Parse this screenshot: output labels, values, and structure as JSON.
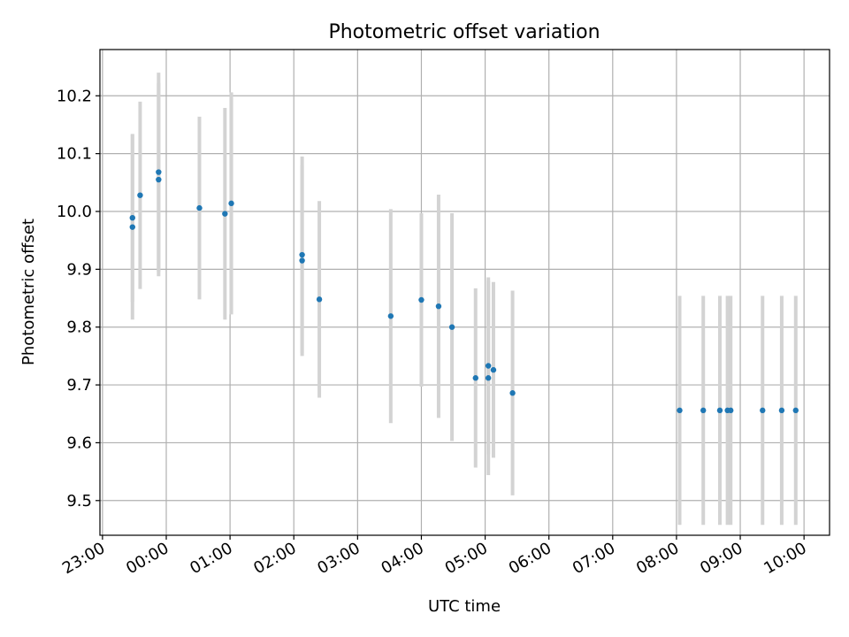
{
  "chart_data": {
    "type": "scatter",
    "title": "Photometric offset variation",
    "xlabel": "UTC time",
    "ylabel": "Photometric offset",
    "x_unit": "hours after 00:00 UTC (negative = previous day)",
    "xlim": [
      -1.04,
      10.4
    ],
    "ylim": [
      9.44,
      10.28
    ],
    "grid": true,
    "legend": "none",
    "x_tick_labels": [
      "23:00",
      "00:00",
      "01:00",
      "02:00",
      "03:00",
      "04:00",
      "05:00",
      "06:00",
      "07:00",
      "08:00",
      "09:00",
      "10:00"
    ],
    "x_tick_values": [
      -1,
      0,
      1,
      2,
      3,
      4,
      5,
      6,
      7,
      8,
      9,
      10
    ],
    "y_ticks": [
      9.5,
      9.6,
      9.7,
      9.8,
      9.9,
      10.0,
      10.1,
      10.2
    ],
    "y_tick_labels": [
      "9.5",
      "9.6",
      "9.7",
      "9.8",
      "9.9",
      "10.0",
      "10.1",
      "10.2"
    ],
    "colors": {
      "points": "#1f77b4",
      "error_bars": "#d3d3d3",
      "grid": "#b0b0b0"
    },
    "series": [
      {
        "points": [
          {
            "x": -0.53,
            "y": 9.989,
            "err": 0.145
          },
          {
            "x": -0.53,
            "y": 9.973,
            "err": 0.16
          },
          {
            "x": -0.41,
            "y": 10.028,
            "err": 0.162
          },
          {
            "x": -0.12,
            "y": 10.068,
            "err": 0.172
          },
          {
            "x": -0.12,
            "y": 10.055,
            "err": 0.167
          },
          {
            "x": 0.52,
            "y": 10.006,
            "err": 0.158
          },
          {
            "x": 0.92,
            "y": 9.996,
            "err": 0.183
          },
          {
            "x": 1.02,
            "y": 10.014,
            "err": 0.192
          },
          {
            "x": 2.13,
            "y": 9.925,
            "err": 0.17
          },
          {
            "x": 2.13,
            "y": 9.915,
            "err": 0.165
          },
          {
            "x": 2.4,
            "y": 9.848,
            "err": 0.17
          },
          {
            "x": 3.52,
            "y": 9.819,
            "err": 0.185
          },
          {
            "x": 4.0,
            "y": 9.847,
            "err": 0.15
          },
          {
            "x": 4.27,
            "y": 9.836,
            "err": 0.193
          },
          {
            "x": 4.48,
            "y": 9.8,
            "err": 0.197
          },
          {
            "x": 4.85,
            "y": 9.712,
            "err": 0.155
          },
          {
            "x": 5.05,
            "y": 9.733,
            "err": 0.153
          },
          {
            "x": 5.05,
            "y": 9.712,
            "err": 0.168
          },
          {
            "x": 5.13,
            "y": 9.726,
            "err": 0.152
          },
          {
            "x": 5.43,
            "y": 9.686,
            "err": 0.177
          },
          {
            "x": 8.05,
            "y": 9.656,
            "err": 0.198
          },
          {
            "x": 8.42,
            "y": 9.656,
            "err": 0.198
          },
          {
            "x": 8.68,
            "y": 9.656,
            "err": 0.198
          },
          {
            "x": 8.8,
            "y": 9.656,
            "err": 0.198
          },
          {
            "x": 8.85,
            "y": 9.656,
            "err": 0.198
          },
          {
            "x": 9.35,
            "y": 9.656,
            "err": 0.198
          },
          {
            "x": 9.65,
            "y": 9.656,
            "err": 0.198
          },
          {
            "x": 9.87,
            "y": 9.656,
            "err": 0.198
          }
        ]
      }
    ]
  }
}
